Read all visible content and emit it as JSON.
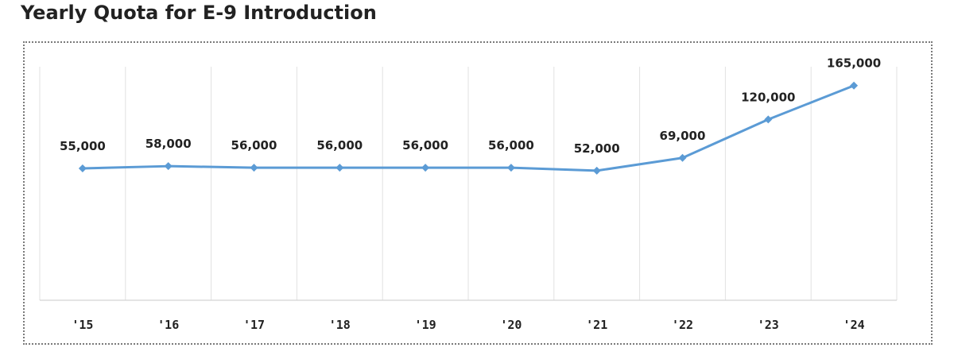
{
  "title": "Yearly Quota for E-9 Introduction",
  "chart_data": {
    "type": "line",
    "title": "Yearly Quota for E-9 Introduction",
    "xlabel": "",
    "ylabel": "",
    "categories": [
      "'15",
      "'16",
      "'17",
      "'18",
      "'19",
      "'20",
      "'21",
      "'22",
      "'23",
      "'24"
    ],
    "series": [
      {
        "values": [
          55000,
          58000,
          56000,
          56000,
          56000,
          56000,
          52000,
          69000,
          120000,
          165000
        ],
        "color": "#5b9bd5"
      }
    ],
    "data_labels": [
      "55,000",
      "58,000",
      "56,000",
      "56,000",
      "56,000",
      "56,000",
      "52,000",
      "69,000",
      "120,000",
      "165,000"
    ],
    "ylim": [
      -120000,
      190000
    ],
    "grid": "vertical",
    "legend": "none",
    "y_axis_labels": false
  }
}
